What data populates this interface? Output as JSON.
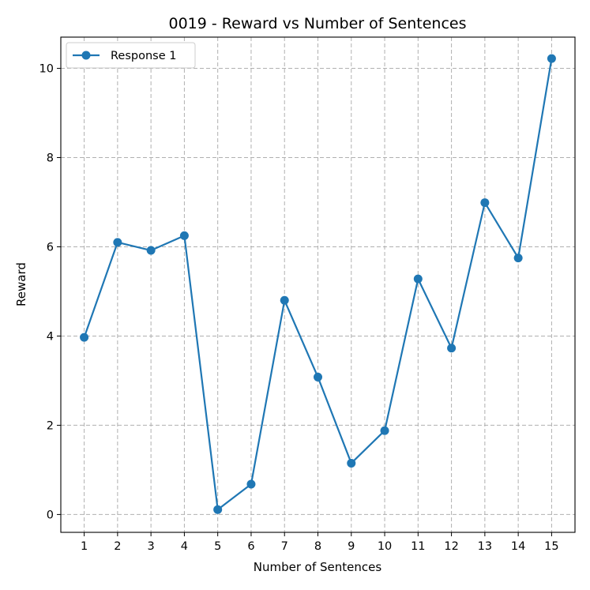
{
  "chart_data": {
    "type": "line",
    "title": "0019 - Reward vs Number of Sentences",
    "xlabel": "Number of Sentences",
    "ylabel": "Reward",
    "x": [
      1,
      2,
      3,
      4,
      5,
      6,
      7,
      8,
      9,
      10,
      11,
      12,
      13,
      14,
      15
    ],
    "xticks": [
      "1",
      "2",
      "3",
      "4",
      "5",
      "6",
      "7",
      "8",
      "9",
      "10",
      "11",
      "12",
      "13",
      "14",
      "15"
    ],
    "yticks": [
      "0",
      "2",
      "4",
      "6",
      "8",
      "10"
    ],
    "xlim": [
      0.3,
      15.7
    ],
    "ylim": [
      -0.4,
      10.7
    ],
    "grid": true,
    "legend_position": "top-left",
    "series": [
      {
        "name": "Response 1",
        "color": "#1f77b4",
        "marker": "circle",
        "values": [
          3.97,
          6.1,
          5.92,
          6.25,
          0.11,
          0.68,
          4.8,
          3.08,
          1.15,
          1.88,
          5.28,
          3.73,
          6.99,
          5.75,
          10.22
        ]
      }
    ]
  }
}
